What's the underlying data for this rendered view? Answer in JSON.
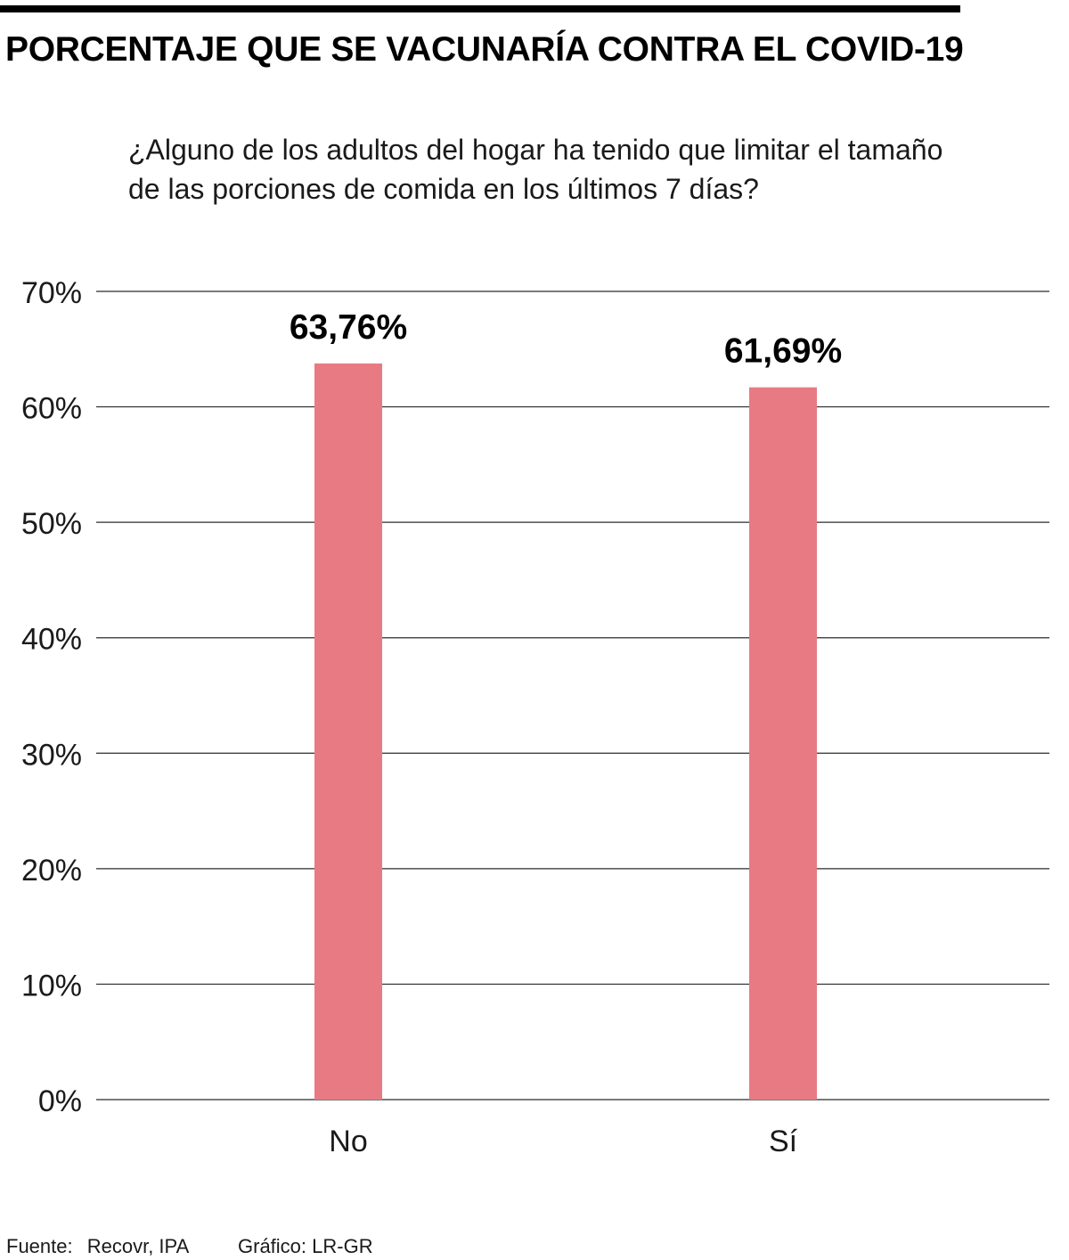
{
  "title": "PORCENTAJE QUE SE VACUNARÍA CONTRA EL COVID-19",
  "subtitle": "¿Alguno de los adultos del hogar ha tenido que limitar el tamaño de las porciones de comida en los últimos 7 días?",
  "footer": {
    "source_label": "Fuente:",
    "source_value": "Recovr, IPA",
    "credit": "Gráfico: LR-GR"
  },
  "colors": {
    "bar": "#e87a84",
    "grid": "#2b2b2b"
  },
  "chart_data": {
    "type": "bar",
    "categories": [
      "No",
      "Sí"
    ],
    "values": [
      63.76,
      61.69
    ],
    "value_labels": [
      "63,76%",
      "61,69%"
    ],
    "title": "PORCENTAJE QUE SE VACUNARÍA CONTRA EL COVID-19",
    "xlabel": "",
    "ylabel": "",
    "ylim": [
      0,
      70
    ],
    "yticks": [
      0,
      10,
      20,
      30,
      40,
      50,
      60,
      70
    ],
    "ytick_labels": [
      "0%",
      "10%",
      "20%",
      "30%",
      "40%",
      "50%",
      "60%",
      "70%"
    ],
    "grid": true,
    "legend": "none"
  }
}
